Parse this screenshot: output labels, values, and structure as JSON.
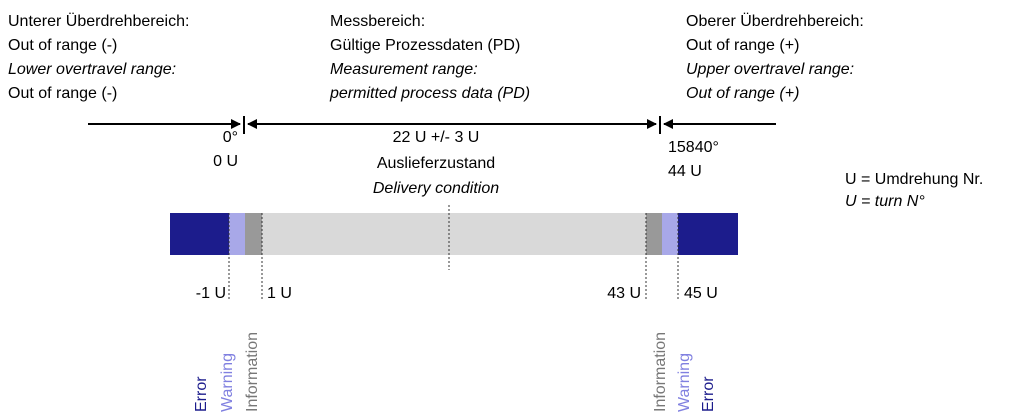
{
  "columns": [
    {
      "lines": [
        "Unterer Überdrehbereich:",
        "Out of range (-)",
        "Lower overtravel range:",
        "Out of range (-)"
      ]
    },
    {
      "lines": [
        "Messbereich:",
        "Gültige Prozessdaten (PD)",
        "Measurement range:",
        "permitted process data (PD)"
      ]
    },
    {
      "lines": [
        "Oberer Überdrehbereich:",
        "Out of range (+)",
        "Upper overtravel range:",
        "Out of range (+)"
      ]
    }
  ],
  "markers": {
    "left_angle": "0°",
    "left_turn": "0 U",
    "center_turn": "22 U +/- 3 U",
    "center_de": "Auslieferzustand",
    "center_en": "Delivery condition",
    "right_angle": "15840°",
    "right_turn": "44 U"
  },
  "legend": {
    "de": "U = Umdrehung Nr.",
    "en": "U = turn N°"
  },
  "bar_labels": [
    "-1 U",
    "1 U",
    "43 U",
    "45 U"
  ],
  "zones": {
    "left": [
      "Error",
      "Warning",
      "Information"
    ],
    "right": [
      "Information",
      "Warning",
      "Error"
    ]
  }
}
